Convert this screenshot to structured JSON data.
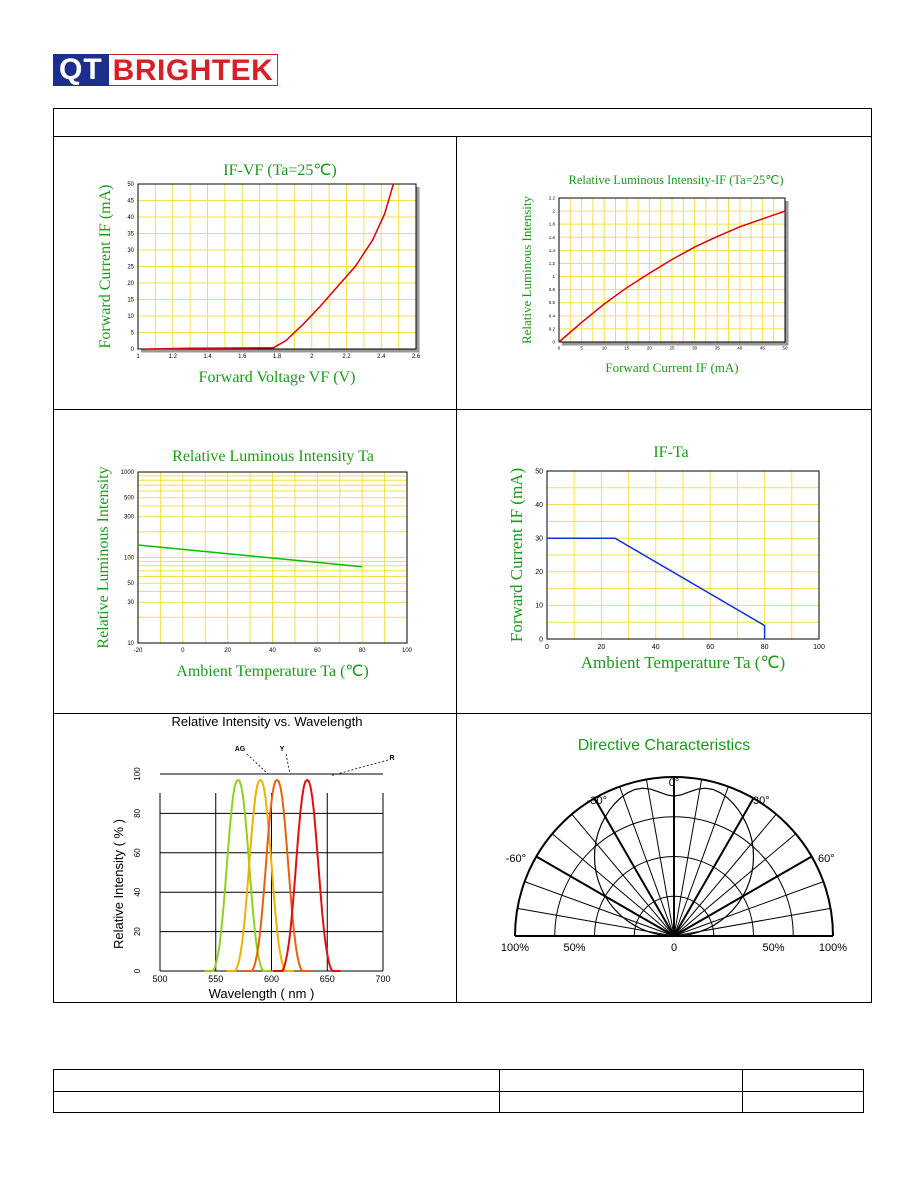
{
  "logo": {
    "part1": "QT",
    "part2": "BRIGHTEK"
  },
  "chart_data": [
    {
      "type": "line",
      "title": "IF-VF (Ta=25℃)",
      "xlabel": "Forward Voltage VF (V)",
      "ylabel": "Forward Current IF (mA)",
      "xlim": [
        1.0,
        2.6
      ],
      "ylim": [
        0,
        50
      ],
      "xticks": [
        "1",
        "1.2",
        "1.4",
        "1.6",
        "1.8",
        "2",
        "2.2",
        "2.4",
        "2.6"
      ],
      "yticks": [
        "0",
        "5",
        "10",
        "15",
        "20",
        "25",
        "30",
        "35",
        "40",
        "45",
        "50"
      ],
      "grid": true,
      "series": [
        {
          "color": "#e00000",
          "x": [
            1.05,
            1.3,
            1.6,
            1.78,
            1.85,
            1.95,
            2.05,
            2.15,
            2.25,
            2.35,
            2.42,
            2.47
          ],
          "y": [
            0,
            0.2,
            0.3,
            0.4,
            2.5,
            7.5,
            13,
            19,
            25,
            33,
            41,
            50
          ]
        }
      ]
    },
    {
      "type": "line",
      "title": "Relative Luminous Intensity-IF   (Ta=25℃)",
      "xlabel": "Forward Current IF (mA)",
      "ylabel": "Relative Luminous Intensity",
      "xlim": [
        0,
        50
      ],
      "ylim": [
        0,
        2.2
      ],
      "xticks": [
        "0",
        "5",
        "10",
        "15",
        "20",
        "25",
        "30",
        "35",
        "40",
        "45",
        "50"
      ],
      "yticks": [
        "0",
        "0.2",
        "0.4",
        "0.6",
        "0.8",
        "1",
        "1.2",
        "1.4",
        "1.6",
        "1.8",
        "2",
        "2.2"
      ],
      "grid": true,
      "series": [
        {
          "color": "#e00000",
          "x": [
            0,
            5,
            10,
            15,
            20,
            25,
            30,
            35,
            40,
            45,
            50
          ],
          "y": [
            0,
            0.3,
            0.58,
            0.83,
            1.05,
            1.26,
            1.45,
            1.61,
            1.76,
            1.88,
            2.0
          ]
        }
      ]
    },
    {
      "type": "line",
      "title": "Relative Luminous Intensity Ta",
      "xlabel": "Ambient Temperature Ta (℃)",
      "ylabel": "Relative Luminous Intensity",
      "xlim": [
        -20,
        100
      ],
      "ylim": [
        10,
        1000
      ],
      "yscale": "log",
      "xticks": [
        "-20",
        "0",
        "20",
        "40",
        "60",
        "80",
        "100"
      ],
      "yticks": [
        "10",
        "30",
        "50",
        "100",
        "300",
        "500",
        "1000"
      ],
      "grid": true,
      "series": [
        {
          "color": "#00c000",
          "x": [
            -20,
            80
          ],
          "y": [
            140,
            78
          ]
        }
      ]
    },
    {
      "type": "line",
      "title": "IF-Ta",
      "xlabel": "Ambient Temperature Ta (℃)",
      "ylabel": "Forward Current IF (mA)",
      "xlim": [
        0,
        100
      ],
      "ylim": [
        0,
        50
      ],
      "xticks": [
        "0",
        "20",
        "40",
        "60",
        "80",
        "100"
      ],
      "yticks": [
        "0",
        "10",
        "20",
        "30",
        "40",
        "50"
      ],
      "grid": true,
      "series": [
        {
          "color": "#1030e0",
          "x": [
            0,
            25,
            80,
            80
          ],
          "y": [
            30,
            30,
            4,
            0
          ]
        }
      ]
    },
    {
      "type": "line",
      "title": "Relative Intensity vs. Wavelength",
      "xlabel": "Wavelength ( nm )",
      "ylabel": "Relative Intensity ( % )",
      "xlim": [
        500,
        700
      ],
      "ylim": [
        0,
        100
      ],
      "xticks": [
        "500",
        "550",
        "600",
        "650",
        "700"
      ],
      "yticks": [
        "0",
        "20",
        "40",
        "60",
        "80",
        "100"
      ],
      "grid": true,
      "series": [
        {
          "name": "AG",
          "color": "#8fd020",
          "peak": 570
        },
        {
          "name": "Y",
          "color": "#f0b000",
          "peak": 590
        },
        {
          "name": "Y",
          "color": "#e86010",
          "peak": 605
        },
        {
          "name": "R",
          "color": "#e01010",
          "peak": 632
        }
      ]
    },
    {
      "type": "polar",
      "title": "Directive Characteristics",
      "angle_labels": [
        "-60°",
        "-30°",
        "0°",
        "30°",
        "60°"
      ],
      "radius_labels": [
        "100%",
        "50%",
        "0",
        "50%",
        "100%"
      ]
    }
  ]
}
